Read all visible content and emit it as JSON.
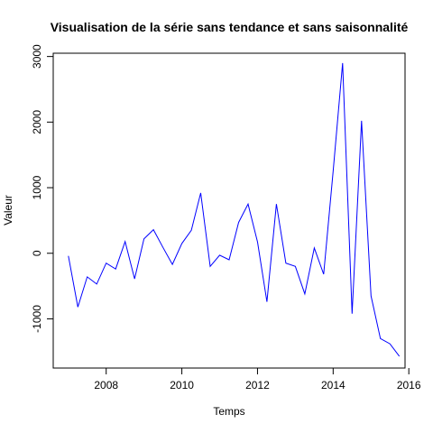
{
  "chart_data": {
    "type": "line",
    "title": "Visualisation de la série sans tendance et sans saisonnalité",
    "xlabel": "Temps",
    "ylabel": "Valeur",
    "xlim": [
      2006.6,
      2015.9
    ],
    "ylim": [
      -1750,
      3050
    ],
    "x_ticks": [
      2008,
      2010,
      2012,
      2014,
      2016
    ],
    "y_ticks": [
      -1000,
      0,
      1000,
      2000,
      3000
    ],
    "grid": false,
    "legend": "none",
    "series": [
      {
        "color": "#0000ff",
        "points": [
          [
            2007.0,
            -40
          ],
          [
            2007.25,
            -820
          ],
          [
            2007.5,
            -360
          ],
          [
            2007.75,
            -470
          ],
          [
            2008.0,
            -150
          ],
          [
            2008.25,
            -240
          ],
          [
            2008.5,
            180
          ],
          [
            2008.75,
            -390
          ],
          [
            2009.0,
            220
          ],
          [
            2009.25,
            360
          ],
          [
            2009.5,
            90
          ],
          [
            2009.75,
            -170
          ],
          [
            2010.0,
            150
          ],
          [
            2010.25,
            350
          ],
          [
            2010.5,
            920
          ],
          [
            2010.75,
            -200
          ],
          [
            2011.0,
            -30
          ],
          [
            2011.25,
            -100
          ],
          [
            2011.5,
            470
          ],
          [
            2011.75,
            750
          ],
          [
            2012.0,
            170
          ],
          [
            2012.25,
            -740
          ],
          [
            2012.5,
            750
          ],
          [
            2012.75,
            -150
          ],
          [
            2013.0,
            -200
          ],
          [
            2013.25,
            -620
          ],
          [
            2013.5,
            80
          ],
          [
            2013.75,
            -320
          ],
          [
            2014.0,
            1250
          ],
          [
            2014.25,
            2900
          ],
          [
            2014.5,
            -920
          ],
          [
            2014.75,
            2020
          ],
          [
            2015.0,
            -650
          ],
          [
            2015.25,
            -1300
          ],
          [
            2015.5,
            -1380
          ],
          [
            2015.75,
            -1570
          ]
        ]
      }
    ]
  }
}
